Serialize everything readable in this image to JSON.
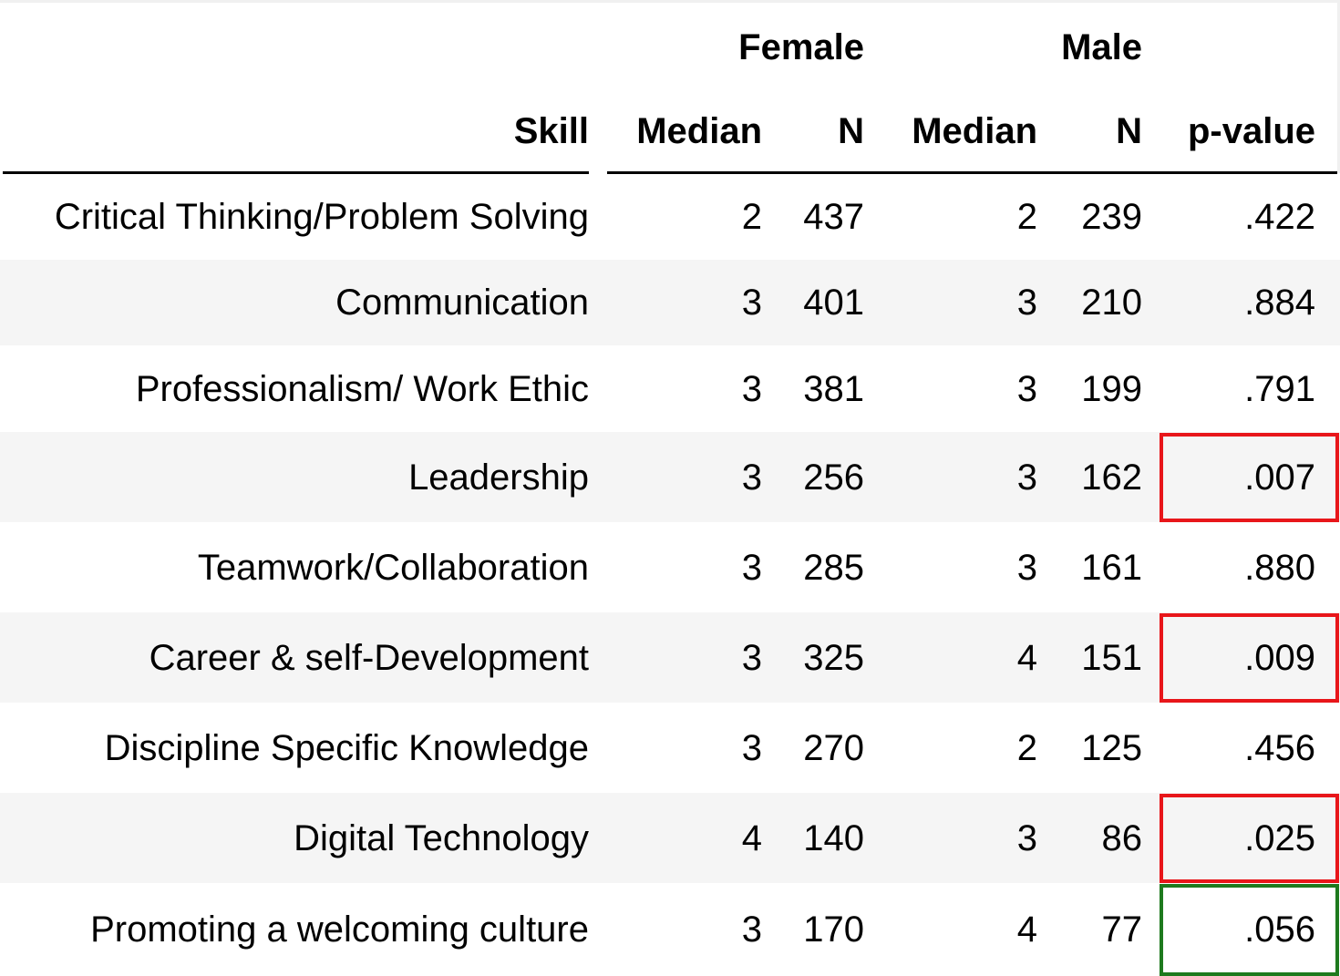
{
  "header": {
    "group_female": "Female",
    "group_male": "Male",
    "col_skill": "Skill",
    "col_female_median": "Median",
    "col_female_n": "N",
    "col_male_median": "Median",
    "col_male_n": "N",
    "col_pvalue": "p-value"
  },
  "rows": [
    {
      "skill": "Critical Thinking/Problem Solving",
      "female_median": "2",
      "female_n": "437",
      "male_median": "2",
      "male_n": "239",
      "p_value": ".422"
    },
    {
      "skill": "Communication",
      "female_median": "3",
      "female_n": "401",
      "male_median": "3",
      "male_n": "210",
      "p_value": ".884"
    },
    {
      "skill": "Professionalism/ Work Ethic",
      "female_median": "3",
      "female_n": "381",
      "male_median": "3",
      "male_n": "199",
      "p_value": ".791"
    },
    {
      "skill": "Leadership",
      "female_median": "3",
      "female_n": "256",
      "male_median": "3",
      "male_n": "162",
      "p_value": ".007"
    },
    {
      "skill": "Teamwork/Collaboration",
      "female_median": "3",
      "female_n": "285",
      "male_median": "3",
      "male_n": "161",
      "p_value": ".880"
    },
    {
      "skill": "Career & self-Development",
      "female_median": "3",
      "female_n": "325",
      "male_median": "4",
      "male_n": "151",
      "p_value": ".009"
    },
    {
      "skill": "Discipline Specific Knowledge",
      "female_median": "3",
      "female_n": "270",
      "male_median": "2",
      "male_n": "125",
      "p_value": ".456"
    },
    {
      "skill": "Digital Technology",
      "female_median": "4",
      "female_n": "140",
      "male_median": "3",
      "male_n": "86",
      "p_value": ".025"
    },
    {
      "skill": "Promoting a welcoming culture",
      "female_median": "3",
      "female_n": "170",
      "male_median": "4",
      "male_n": "77",
      "p_value": ".056"
    }
  ],
  "highlights": [
    {
      "row": 3,
      "color": "#e8161a"
    },
    {
      "row": 5,
      "color": "#e8161a"
    },
    {
      "row": 7,
      "color": "#e8161a"
    },
    {
      "row": 8,
      "color": "#1e7a1e"
    }
  ],
  "colors": {
    "row_shade": "#f5f5f5",
    "significant_box": "#e8161a",
    "marginal_box": "#1e7a1e"
  }
}
